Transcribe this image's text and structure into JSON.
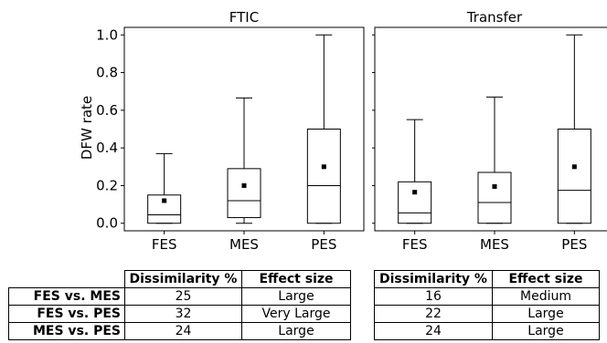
{
  "chart_data": [
    {
      "type": "box",
      "title": "FTIC",
      "ylabel": "DFW rate",
      "ylim": [
        -0.04,
        1.04
      ],
      "yticks": [
        "0.0",
        "0.2",
        "0.4",
        "0.6",
        "0.8",
        "1.0"
      ],
      "ytick_values": [
        0.0,
        0.2,
        0.4,
        0.6,
        0.8,
        1.0
      ],
      "categories": [
        "FES",
        "MES",
        "PES"
      ],
      "boxes": [
        {
          "whisker_low": 0.0,
          "q1": 0.0,
          "median": 0.045,
          "q3": 0.15,
          "whisker_high": 0.37,
          "mean": 0.12
        },
        {
          "whisker_low": 0.0,
          "q1": 0.03,
          "median": 0.12,
          "q3": 0.29,
          "whisker_high": 0.665,
          "mean": 0.2
        },
        {
          "whisker_low": 0.0,
          "q1": 0.0,
          "median": 0.2,
          "q3": 0.5,
          "whisker_high": 1.0,
          "mean": 0.3
        }
      ],
      "grid": false
    },
    {
      "type": "box",
      "title": "Transfer",
      "ylabel": "",
      "ylim": [
        -0.04,
        1.04
      ],
      "categories": [
        "FES",
        "MES",
        "PES"
      ],
      "boxes": [
        {
          "whisker_low": 0.0,
          "q1": 0.0,
          "median": 0.055,
          "q3": 0.22,
          "whisker_high": 0.55,
          "mean": 0.165
        },
        {
          "whisker_low": 0.0,
          "q1": 0.0,
          "median": 0.11,
          "q3": 0.27,
          "whisker_high": 0.67,
          "mean": 0.195
        },
        {
          "whisker_low": 0.0,
          "q1": 0.0,
          "median": 0.175,
          "q3": 0.5,
          "whisker_high": 1.0,
          "mean": 0.3
        }
      ],
      "grid": false
    },
    {
      "type": "table",
      "columns": [
        "Dissimilarity %",
        "Effect size"
      ],
      "rows": [
        {
          "label": "FES vs. MES",
          "values": [
            "25",
            "Large"
          ]
        },
        {
          "label": "FES vs. PES",
          "values": [
            "32",
            "Very Large"
          ]
        },
        {
          "label": "MES vs. PES",
          "values": [
            "24",
            "Large"
          ]
        }
      ]
    },
    {
      "type": "table",
      "columns": [
        "Dissimilarity %",
        "Effect size"
      ],
      "rows": [
        {
          "values": [
            "16",
            "Medium"
          ]
        },
        {
          "values": [
            "22",
            "Large"
          ]
        },
        {
          "values": [
            "24",
            "Large"
          ]
        }
      ]
    }
  ]
}
